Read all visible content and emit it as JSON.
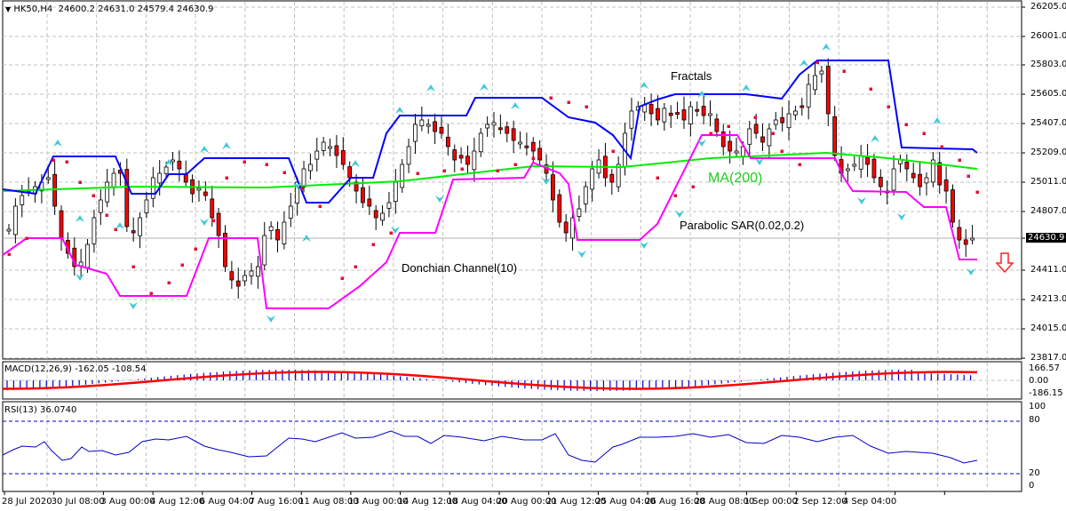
{
  "header": {
    "symbol_label": "HK50,H4",
    "ohlc": "24600.2 24631.0 24579.4 24630.9",
    "menu_icon": "triangle-down-icon"
  },
  "price_axis": {
    "ticks": [
      "26205.0",
      "26001.0",
      "25803.0",
      "25605.0",
      "25407.0",
      "25209.0",
      "25011.0",
      "24807.0",
      "24630.9",
      "24411.0",
      "24213.0",
      "24015.0",
      "23817.0"
    ],
    "current_price": "24630.9",
    "signal_icon": "down-arrow-icon",
    "signal_color": "#ff0000"
  },
  "annotations": {
    "fractals": "Fractals",
    "ma": "MA(200)",
    "sar": "Parabolic SAR(0.02,0.2)",
    "donchian": "Donchian Channel(10)"
  },
  "macd": {
    "label": "MACD(12,26,9) -162.05 -108.54",
    "ticks": [
      "166.57",
      "0.00",
      "-186.15"
    ]
  },
  "rsi": {
    "label": "RSI(13) 36.0740",
    "ticks": [
      "100",
      "80",
      "20",
      "0"
    ]
  },
  "time_axis": {
    "labels": [
      "28 Jul 2020",
      "30 Jul 08:00",
      "3 Aug 00:00",
      "4 Aug 12:00",
      "6 Aug 04:00",
      "7 Aug 16:00",
      "11 Aug 08:00",
      "13 Aug 00:00",
      "14 Aug 12:00",
      "18 Aug 04:00",
      "20 Aug 00:00",
      "21 Aug 12:00",
      "25 Aug 04:00",
      "26 Aug 16:00",
      "28 Aug 08:00",
      "1 Sep 00:00",
      "2 Sep 12:00",
      "4 Sep 04:00"
    ]
  },
  "colors": {
    "bull_candle": "#ffffff",
    "bear_candle": "#ff0000",
    "donchian_upper": "#0000ff",
    "donchian_lower": "#ff00ff",
    "ma": "#00ee00",
    "sar": "#e0103a",
    "fractal": "#40c8d8",
    "macd_hist": "#0000cc",
    "macd_signal": "#ff0000",
    "rsi_line": "#0000cc",
    "grid": "#c0c0c0"
  },
  "chart_data": {
    "type": "candlestick",
    "title": "HK50,H4",
    "ylim": [
      23817.0,
      26205.0
    ],
    "x": [
      "28 Jul 2020",
      "30 Jul 08:00",
      "3 Aug 00:00",
      "4 Aug 12:00",
      "6 Aug 04:00",
      "7 Aug 16:00",
      "11 Aug 08:00",
      "13 Aug 00:00",
      "14 Aug 12:00",
      "18 Aug 04:00",
      "20 Aug 00:00",
      "21 Aug 12:00",
      "25 Aug 04:00",
      "26 Aug 16:00",
      "28 Aug 08:00",
      "1 Sep 00:00",
      "2 Sep 12:00",
      "4 Sep 04:00"
    ],
    "close_approx": [
      24880,
      24620,
      24380,
      25020,
      24780,
      24390,
      24950,
      25420,
      25350,
      25260,
      24700,
      25400,
      25450,
      25200,
      25700,
      25100,
      25050,
      24630.9
    ],
    "last_bar": {
      "open": 24600.2,
      "high": 24631.0,
      "low": 24579.4,
      "close": 24630.9
    },
    "indicators": {
      "ma_200": {
        "start": 24990,
        "end": 25110,
        "peak": 25190
      },
      "donchian_10": {
        "upper_end": 25200,
        "lower_end": 24460
      },
      "parabolic_sar": {
        "step": 0.02,
        "max": 0.2,
        "last": 24950
      },
      "macd": {
        "params": "12,26,9",
        "main": -162.05,
        "signal": -108.54,
        "range": [
          -186.15,
          166.57
        ]
      },
      "rsi": {
        "period": 13,
        "value": 36.074,
        "levels": [
          20,
          80
        ]
      }
    },
    "xlabel": "",
    "ylabel": ""
  }
}
